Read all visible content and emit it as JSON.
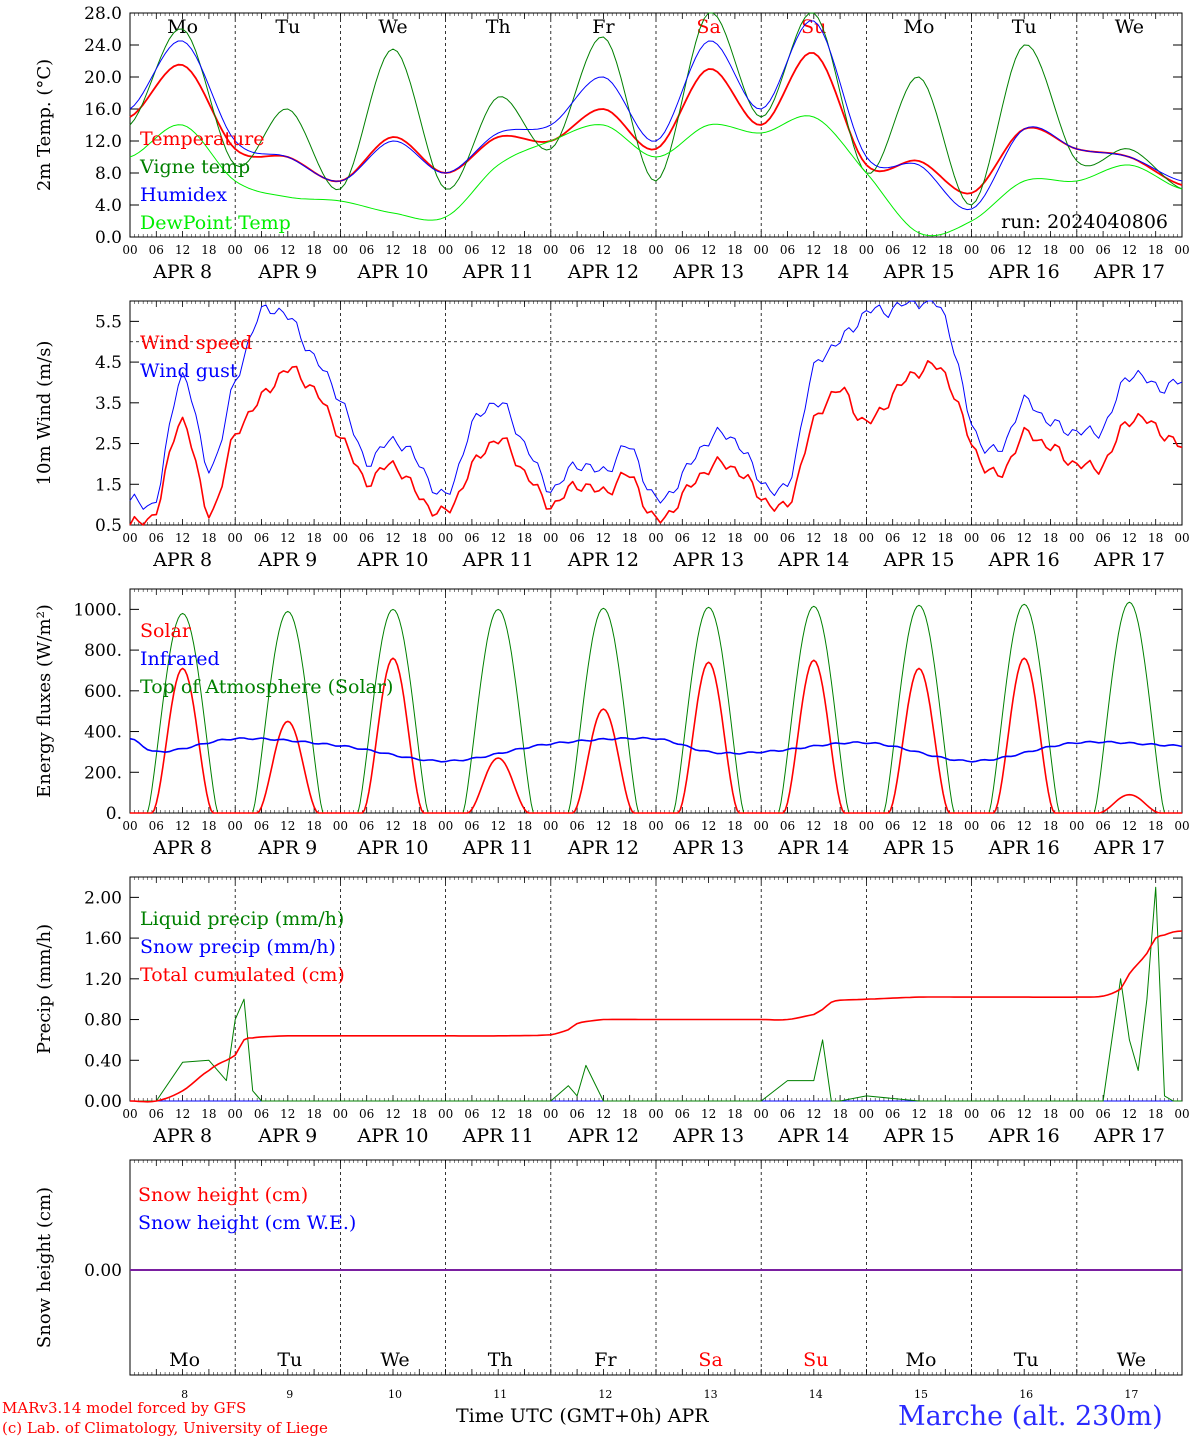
{
  "run_label": "run: 2024040806",
  "days": [
    "Mo",
    "Tu",
    "We",
    "Th",
    "Fr",
    "Sa",
    "Su",
    "Mo",
    "Tu",
    "We"
  ],
  "weekend_indices": [
    5,
    6
  ],
  "dates": [
    "APR  8",
    "APR  9",
    "APR 10",
    "APR 11",
    "APR 12",
    "APR 13",
    "APR 14",
    "APR 15",
    "APR 16",
    "APR 17"
  ],
  "day_numbers": [
    "8",
    "9",
    "10",
    "11",
    "12",
    "13",
    "14",
    "15",
    "16",
    "17"
  ],
  "hour_ticks": [
    "00",
    "06",
    "12",
    "18"
  ],
  "hour_end": "00",
  "footer": {
    "model": "MARv3.14 model forced by GFS",
    "lab": "(c) Lab. of Climatology, University of Liege",
    "axis": "Time UTC (GMT+0h) APR",
    "station": "Marche (alt. 230m)"
  },
  "colors": {
    "red": "#ff0000",
    "green": "#008000",
    "blue": "#0000ff",
    "lightgreen": "#00ee00",
    "purple": "#7a1fa0"
  },
  "chart_data": [
    {
      "type": "line",
      "id": "temp",
      "ylabel": "2m Temp. (°C)",
      "ylim": [
        0,
        28
      ],
      "ytick_labels": [
        "0.0",
        "4.0",
        "8.0",
        "12.0",
        "16.0",
        "20.0",
        "24.0",
        "28.0"
      ],
      "x": [
        0,
        12,
        24,
        36,
        48,
        60,
        72,
        84,
        96,
        108,
        120,
        132,
        144,
        156,
        168,
        180,
        192,
        204,
        216,
        228,
        240
      ],
      "series": [
        {
          "name": "Temperature",
          "color": "red",
          "values": [
            15,
            21.5,
            11,
            10,
            7,
            12.5,
            8,
            12.5,
            12,
            16,
            11,
            21,
            14,
            23,
            9,
            9.5,
            5.5,
            13.5,
            11,
            10,
            6.5
          ]
        },
        {
          "name": "Vigne temp",
          "color": "green",
          "values": [
            14,
            26,
            9,
            16,
            6,
            23.5,
            6,
            17.5,
            11,
            25,
            7,
            28,
            15,
            28,
            8,
            20,
            4,
            24,
            9.5,
            11,
            6
          ]
        },
        {
          "name": "Humidex",
          "color": "blue",
          "values": [
            16,
            24.5,
            12,
            10,
            7,
            12,
            8,
            13,
            14,
            20,
            12,
            24.5,
            16,
            27,
            10,
            9,
            3.5,
            13.5,
            11,
            10,
            7
          ]
        },
        {
          "name": "DewPoint Temp",
          "color": "lightgreen",
          "values": [
            10,
            14,
            7,
            5,
            4.5,
            3,
            2.5,
            9,
            12,
            14,
            10,
            14,
            13,
            15,
            8,
            0.5,
            2,
            7,
            7,
            9,
            6
          ]
        }
      ]
    },
    {
      "type": "line",
      "id": "wind",
      "ylabel": "10m Wind (m/s)",
      "ylim": [
        0.5,
        6.0
      ],
      "ytick_labels": [
        "0.5",
        "1.5",
        "2.5",
        "3.5",
        "4.5",
        "5.5"
      ],
      "reference_line": 5.0,
      "x": [
        0,
        6,
        12,
        18,
        24,
        30,
        36,
        42,
        48,
        54,
        60,
        66,
        72,
        78,
        84,
        90,
        96,
        102,
        108,
        114,
        120,
        126,
        132,
        138,
        144,
        150,
        156,
        162,
        168,
        174,
        180,
        186,
        192,
        198,
        204,
        210,
        216,
        222,
        228,
        234,
        240
      ],
      "series": [
        {
          "name": "Wind speed",
          "color": "red",
          "values": [
            0.5,
            0.9,
            3.1,
            0.8,
            2.7,
            3.6,
            4.3,
            3.8,
            2.7,
            1.6,
            2.0,
            1.2,
            0.8,
            1.9,
            2.6,
            1.8,
            1.0,
            1.5,
            1.3,
            1.7,
            0.6,
            1.2,
            1.9,
            1.9,
            1.2,
            1.0,
            3.0,
            3.8,
            3.0,
            3.7,
            4.3,
            4.2,
            2.5,
            1.7,
            2.7,
            2.4,
            2.0,
            2.0,
            3.1,
            2.9,
            2.4
          ]
        },
        {
          "name": "Wind gust",
          "color": "blue",
          "values": [
            1.1,
            1.2,
            4.2,
            1.9,
            4.0,
            5.7,
            5.6,
            4.6,
            3.6,
            2.1,
            2.6,
            2.0,
            1.2,
            2.9,
            3.5,
            2.5,
            1.4,
            2.0,
            1.8,
            2.4,
            1.1,
            1.7,
            2.6,
            2.6,
            1.6,
            1.5,
            4.3,
            5.0,
            5.7,
            5.8,
            6.0,
            5.6,
            3.0,
            2.3,
            3.5,
            3.0,
            2.8,
            2.9,
            4.2,
            3.9,
            4.0
          ]
        }
      ]
    },
    {
      "type": "line",
      "id": "energy",
      "ylabel": "Energy fluxes (W/m²)",
      "ylim": [
        0,
        1100
      ],
      "ytick_labels": [
        "0.",
        "200.",
        "400.",
        "600.",
        "800.",
        "1000."
      ],
      "solar_peaks": [
        710,
        450,
        760,
        270,
        510,
        740,
        750,
        710,
        760,
        90
      ],
      "toa_peaks": [
        980,
        990,
        1000,
        1000,
        1005,
        1010,
        1015,
        1020,
        1025,
        1035
      ],
      "infrared": {
        "x": [
          0,
          6,
          24,
          48,
          72,
          96,
          120,
          132,
          144,
          168,
          192,
          216,
          240
        ],
        "values": [
          365,
          300,
          365,
          330,
          255,
          340,
          365,
          300,
          300,
          345,
          255,
          345,
          330
        ]
      },
      "series": [
        {
          "name": "Solar",
          "color": "red"
        },
        {
          "name": "Infrared",
          "color": "blue"
        },
        {
          "name": "Top of Atmosphere (Solar)",
          "color": "green"
        }
      ]
    },
    {
      "type": "line",
      "id": "precip",
      "ylabel": "Precip (mm/h)",
      "ylim": [
        0,
        2.2
      ],
      "ytick_labels": [
        "0.00",
        "0.40",
        "0.80",
        "1.20",
        "1.60",
        "2.00"
      ],
      "x": [
        0,
        6,
        12,
        18,
        22,
        24,
        26,
        28,
        30,
        36,
        48,
        60,
        72,
        84,
        96,
        100,
        102,
        104,
        108,
        120,
        132,
        144,
        150,
        156,
        158,
        160,
        162,
        168,
        180,
        192,
        204,
        216,
        222,
        226,
        228,
        230,
        232,
        234,
        236,
        238,
        240
      ],
      "series": [
        {
          "name": "Liquid precip (mm/h)",
          "color": "green",
          "values": [
            0,
            0,
            0.38,
            0.4,
            0.2,
            0.8,
            1.0,
            0.1,
            0,
            0,
            0,
            0,
            0,
            0,
            0,
            0.15,
            0.05,
            0.35,
            0,
            0,
            0,
            0,
            0.2,
            0.2,
            0.6,
            0,
            0,
            0.05,
            0,
            0,
            0,
            0,
            0,
            1.2,
            0.6,
            0.3,
            1.0,
            2.1,
            0.05,
            0,
            0
          ]
        },
        {
          "name": "Snow precip (mm/h)",
          "color": "blue",
          "values": [
            0,
            0,
            0,
            0,
            0,
            0,
            0,
            0,
            0,
            0,
            0,
            0,
            0,
            0,
            0,
            0,
            0,
            0,
            0,
            0,
            0,
            0,
            0,
            0,
            0,
            0,
            0,
            0,
            0,
            0,
            0,
            0,
            0,
            0,
            0,
            0,
            0,
            0,
            0,
            0,
            0
          ]
        },
        {
          "name": "Total cumulated (cm)",
          "color": "red",
          "values": [
            0,
            0,
            0.1,
            0.3,
            0.4,
            0.45,
            0.6,
            0.62,
            0.63,
            0.64,
            0.64,
            0.64,
            0.64,
            0.64,
            0.65,
            0.7,
            0.76,
            0.78,
            0.8,
            0.8,
            0.8,
            0.8,
            0.8,
            0.85,
            0.9,
            0.97,
            0.99,
            1.0,
            1.02,
            1.02,
            1.02,
            1.02,
            1.03,
            1.1,
            1.25,
            1.35,
            1.45,
            1.6,
            1.63,
            1.66,
            1.67
          ]
        }
      ]
    },
    {
      "type": "line",
      "id": "snow",
      "ylabel": "Snow height (cm)",
      "ytick_labels": [
        "0.00"
      ],
      "value": 0.0,
      "series": [
        {
          "name": "Snow height (cm)",
          "color": "red"
        },
        {
          "name": "Snow height (cm W.E.)",
          "color": "blue"
        }
      ]
    }
  ]
}
